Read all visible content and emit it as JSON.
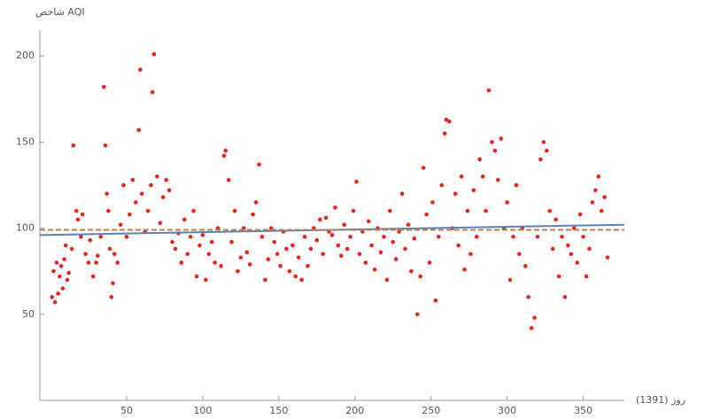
{
  "chart_data": {
    "type": "scatter",
    "ylabel": "شاخص AQI",
    "xlabel": "روز (1391)",
    "xlim": [
      -7,
      377
    ],
    "ylim": [
      0,
      215
    ],
    "xticks": [
      50,
      100,
      150,
      200,
      250,
      300,
      350
    ],
    "yticks": [
      50,
      100,
      150,
      200
    ],
    "color": "#e8231f",
    "x": [
      1,
      2,
      3,
      4,
      5,
      6,
      7,
      8,
      9,
      10,
      11,
      12,
      14,
      15,
      17,
      18,
      20,
      21,
      23,
      25,
      26,
      28,
      30,
      31,
      33,
      35,
      36,
      37,
      38,
      39,
      40,
      41,
      42,
      44,
      46,
      48,
      50,
      52,
      54,
      56,
      58,
      59,
      60,
      62,
      64,
      66,
      67,
      68,
      70,
      72,
      74,
      76,
      78,
      80,
      82,
      84,
      86,
      88,
      90,
      92,
      94,
      96,
      98,
      100,
      102,
      104,
      106,
      108,
      110,
      112,
      114,
      115,
      117,
      119,
      121,
      123,
      125,
      127,
      129,
      131,
      133,
      135,
      137,
      139,
      141,
      143,
      145,
      147,
      149,
      151,
      153,
      155,
      157,
      159,
      161,
      163,
      165,
      167,
      169,
      171,
      173,
      175,
      177,
      179,
      181,
      183,
      185,
      187,
      189,
      191,
      193,
      195,
      197,
      199,
      201,
      203,
      205,
      207,
      209,
      211,
      213,
      215,
      217,
      219,
      221,
      223,
      225,
      227,
      229,
      231,
      233,
      235,
      237,
      239,
      241,
      243,
      245,
      247,
      249,
      251,
      253,
      255,
      257,
      259,
      260,
      262,
      264,
      266,
      268,
      270,
      272,
      274,
      276,
      278,
      280,
      282,
      284,
      286,
      288,
      290,
      292,
      294,
      296,
      298,
      300,
      302,
      304,
      306,
      308,
      310,
      312,
      314,
      316,
      318,
      320,
      322,
      324,
      326,
      328,
      330,
      332,
      334,
      336,
      338,
      340,
      342,
      344,
      346,
      348,
      350,
      352,
      354,
      356,
      358,
      360,
      362,
      364,
      366
    ],
    "values": [
      60,
      75,
      57,
      80,
      62,
      72,
      78,
      65,
      82,
      90,
      70,
      74,
      88,
      148,
      110,
      105,
      95,
      108,
      85,
      80,
      93,
      72,
      80,
      84,
      95,
      182,
      148,
      120,
      110,
      88,
      60,
      68,
      85,
      80,
      102,
      125,
      95,
      108,
      128,
      115,
      157,
      192,
      120,
      98,
      110,
      125,
      179,
      201,
      130,
      103,
      118,
      128,
      122,
      92,
      88,
      97,
      80,
      105,
      85,
      95,
      110,
      72,
      90,
      96,
      70,
      85,
      92,
      80,
      100,
      78,
      142,
      145,
      128,
      92,
      110,
      75,
      83,
      100,
      86,
      79,
      108,
      115,
      137,
      95,
      70,
      82,
      100,
      92,
      85,
      78,
      98,
      88,
      75,
      90,
      72,
      83,
      70,
      95,
      78,
      88,
      100,
      93,
      105,
      85,
      106,
      98,
      96,
      112,
      90,
      84,
      102,
      88,
      95,
      110,
      127,
      85,
      98,
      80,
      104,
      90,
      76,
      100,
      86,
      95,
      70,
      110,
      92,
      82,
      98,
      120,
      88,
      102,
      75,
      94,
      50,
      72,
      135,
      108,
      80,
      115,
      58,
      95,
      125,
      155,
      163,
      162,
      100,
      120,
      90,
      130,
      76,
      110,
      85,
      122,
      95,
      140,
      130,
      110,
      180,
      150,
      145,
      128,
      152,
      100,
      115,
      70,
      95,
      125,
      85,
      100,
      78,
      60,
      42,
      48,
      95,
      140,
      150,
      145,
      110,
      88,
      105,
      72,
      95,
      60,
      90,
      85,
      100,
      80,
      108,
      95,
      72,
      88,
      115,
      122,
      130,
      110,
      118,
      83
    ],
    "lines": [
      {
        "x": [
          -7,
          377
        ],
        "values": [
          96,
          102
        ],
        "color": "#5e81b5"
      },
      {
        "x": [
          -7,
          377
        ],
        "values": [
          99,
          99
        ],
        "color": "#b5804a",
        "dashed": true
      }
    ]
  }
}
